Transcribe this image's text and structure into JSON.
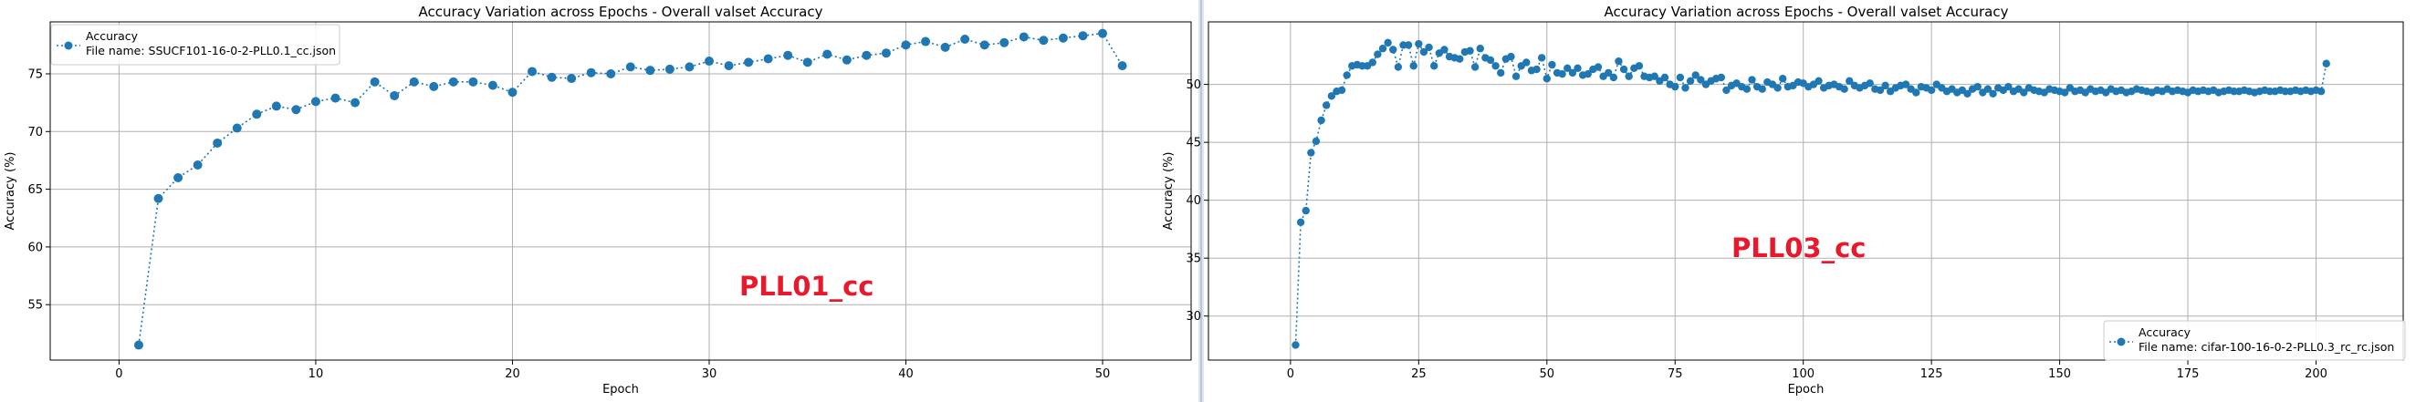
{
  "chart_data": [
    {
      "type": "line",
      "title": "Accuracy Variation across Epochs - Overall valset Accuracy",
      "xlabel": "Epoch",
      "ylabel": "Accuracy (%)",
      "xlim": [
        -3.5,
        54.5
      ],
      "ylim": [
        50.2,
        79.5
      ],
      "xticks": [
        0,
        10,
        20,
        30,
        40,
        50
      ],
      "yticks": [
        55,
        60,
        65,
        70,
        75
      ],
      "grid": true,
      "legend_position": "top-left",
      "legend": {
        "series_label": "Accuracy",
        "file_label": "File name: SSUCF101-16-0-2-PLL0.1_cc.json"
      },
      "annotation": "PLL01_cc",
      "series": [
        {
          "name": "Accuracy",
          "color": "#1f77b4",
          "x": [
            1,
            2,
            3,
            4,
            5,
            6,
            7,
            8,
            9,
            10,
            11,
            12,
            13,
            14,
            15,
            16,
            17,
            18,
            19,
            20,
            21,
            22,
            23,
            24,
            25,
            26,
            27,
            28,
            29,
            30,
            31,
            32,
            33,
            34,
            35,
            36,
            37,
            38,
            39,
            40,
            41,
            42,
            43,
            44,
            45,
            46,
            47,
            48,
            49,
            50,
            51
          ],
          "values": [
            51.5,
            64.2,
            66.0,
            67.1,
            69.0,
            70.3,
            71.5,
            72.2,
            71.9,
            72.6,
            72.9,
            72.5,
            74.3,
            73.1,
            74.3,
            73.9,
            74.3,
            74.3,
            74.0,
            73.4,
            75.2,
            74.7,
            74.6,
            75.1,
            75.0,
            75.6,
            75.3,
            75.4,
            75.6,
            76.1,
            75.7,
            76.0,
            76.3,
            76.6,
            76.0,
            76.7,
            76.2,
            76.6,
            76.8,
            77.5,
            77.8,
            77.3,
            78.0,
            77.5,
            77.7,
            78.2,
            77.9,
            78.1,
            78.3,
            78.5,
            75.7
          ]
        }
      ]
    },
    {
      "type": "line",
      "title": "Accuracy Variation across Epochs - Overall valset Accuracy",
      "xlabel": "Epoch",
      "ylabel": "Accuracy (%)",
      "xlim": [
        -16,
        217
      ],
      "ylim": [
        26.2,
        55.4
      ],
      "xticks": [
        0,
        25,
        50,
        75,
        100,
        125,
        150,
        175,
        200
      ],
      "yticks": [
        30,
        35,
        40,
        45,
        50
      ],
      "grid": true,
      "legend_position": "bottom-right",
      "legend": {
        "series_label": "Accuracy",
        "file_label": "File name: cifar-100-16-0-2-PLL0.3_rc_rc.json"
      },
      "annotation": "PLL03_cc",
      "series": [
        {
          "name": "Accuracy",
          "color": "#1f77b4",
          "x_start": 1,
          "values": [
            27.5,
            38.1,
            39.1,
            44.1,
            45.1,
            46.9,
            48.2,
            49.0,
            49.4,
            49.5,
            50.8,
            51.6,
            51.7,
            51.6,
            51.6,
            51.9,
            52.6,
            53.1,
            53.6,
            53.0,
            51.5,
            53.4,
            53.4,
            51.6,
            53.5,
            52.8,
            53.2,
            51.6,
            52.7,
            53.0,
            52.4,
            52.3,
            52.2,
            52.8,
            52.9,
            51.5,
            53.1,
            52.3,
            52.1,
            51.6,
            51.0,
            52.2,
            52.4,
            50.7,
            51.6,
            51.9,
            51.2,
            51.3,
            52.3,
            50.5,
            51.7,
            51.0,
            50.9,
            51.4,
            51.0,
            51.4,
            50.8,
            50.9,
            51.3,
            51.5,
            50.7,
            51.0,
            50.6,
            52.0,
            51.3,
            50.7,
            51.4,
            51.6,
            50.7,
            50.6,
            50.7,
            50.3,
            50.6,
            50.0,
            49.8,
            50.6,
            49.7,
            50.3,
            50.8,
            50.4,
            50.0,
            50.3,
            50.5,
            50.6,
            49.5,
            49.9,
            50.1,
            49.8,
            49.6,
            50.4,
            49.8,
            49.6,
            50.2,
            50.0,
            49.7,
            50.5,
            49.8,
            49.9,
            50.2,
            50.1,
            49.8,
            50.0,
            50.3,
            49.7,
            49.9,
            50.0,
            49.8,
            49.6,
            50.3,
            49.9,
            49.7,
            49.9,
            50.1,
            49.6,
            49.5,
            49.9,
            49.4,
            49.7,
            49.9,
            50.0,
            49.6,
            49.3,
            49.8,
            49.7,
            49.5,
            50.0,
            49.7,
            49.4,
            49.6,
            49.3,
            49.5,
            49.2,
            49.6,
            49.8,
            49.3,
            49.6,
            49.2,
            49.7,
            49.5,
            49.8,
            49.4,
            49.6,
            49.3,
            49.7,
            49.5,
            49.4,
            49.3,
            49.6,
            49.5,
            49.4,
            49.3,
            49.7,
            49.4,
            49.5,
            49.3,
            49.6,
            49.4,
            49.5,
            49.3,
            49.6,
            49.4,
            49.5,
            49.3,
            49.4,
            49.6,
            49.5,
            49.4,
            49.3,
            49.5,
            49.4,
            49.6,
            49.4,
            49.5,
            49.4,
            49.3,
            49.5,
            49.4,
            49.5,
            49.4,
            49.5,
            49.3,
            49.4,
            49.5,
            49.4,
            49.4,
            49.5,
            49.4,
            49.3,
            49.4,
            49.5,
            49.4,
            49.4,
            49.5,
            49.4,
            49.4,
            49.5,
            49.4,
            49.5,
            49.4,
            49.5,
            49.4,
            51.8
          ]
        }
      ]
    }
  ]
}
